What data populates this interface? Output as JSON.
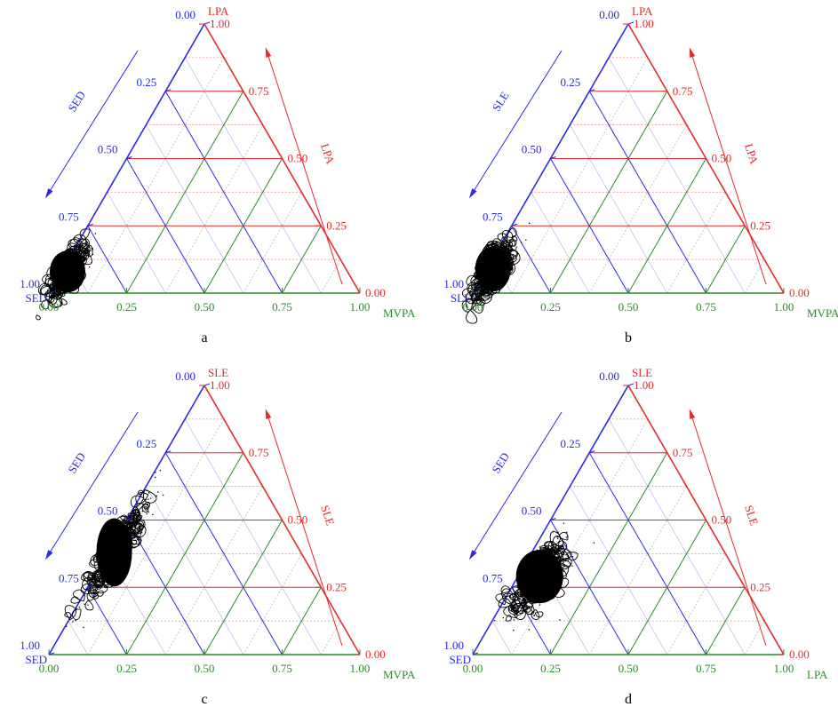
{
  "colors": {
    "left": "#2a2ae6",
    "right": "#e62a2a",
    "bottom": "#2a8a2a",
    "data": "#000000"
  },
  "chart_data": [
    {
      "type": "scatter",
      "caption": "a",
      "components": {
        "left": "SED",
        "right": "LPA",
        "bottom": "MVPA"
      },
      "ticks": [
        "0.00",
        "0.25",
        "0.50",
        "0.75",
        "1.00"
      ],
      "axis_range": [
        0,
        1
      ],
      "cluster": {
        "SED_range": [
          0.8,
          1.0
        ],
        "LPA_range": [
          0.0,
          0.2
        ],
        "MVPA_range": [
          0.0,
          0.05
        ],
        "center": {
          "SED": 0.9,
          "LPA": 0.08,
          "MVPA": 0.02
        }
      }
    },
    {
      "type": "scatter",
      "caption": "b",
      "components": {
        "left": "SLE",
        "right": "LPA",
        "bottom": "MVPA"
      },
      "ticks": [
        "0.00",
        "0.25",
        "0.50",
        "0.75",
        "1.00"
      ],
      "axis_range": [
        0,
        1
      ],
      "cluster": {
        "SLE_range": [
          0.78,
          1.0
        ],
        "LPA_range": [
          0.0,
          0.22
        ],
        "MVPA_range": [
          0.0,
          0.05
        ],
        "center": {
          "SLE": 0.89,
          "LPA": 0.09,
          "MVPA": 0.02
        }
      }
    },
    {
      "type": "scatter",
      "caption": "c",
      "components": {
        "left": "SED",
        "right": "SLE",
        "bottom": "MVPA"
      },
      "ticks": [
        "0.00",
        "0.25",
        "0.50",
        "0.75",
        "1.00"
      ],
      "axis_range": [
        0,
        1
      ],
      "cluster": {
        "SED_range": [
          0.42,
          0.78
        ],
        "SLE_range": [
          0.22,
          0.58
        ],
        "MVPA_range": [
          0.0,
          0.04
        ],
        "center": {
          "SED": 0.6,
          "SLE": 0.38,
          "MVPA": 0.02
        }
      }
    },
    {
      "type": "scatter",
      "caption": "d",
      "components": {
        "left": "SED",
        "right": "SLE",
        "bottom": "LPA"
      },
      "ticks": [
        "0.00",
        "0.25",
        "0.50",
        "0.75",
        "1.00"
      ],
      "axis_range": [
        0,
        1
      ],
      "cluster": {
        "SED_range": [
          0.48,
          0.8
        ],
        "SLE_range": [
          0.15,
          0.42
        ],
        "LPA_range": [
          0.02,
          0.12
        ],
        "center": {
          "SED": 0.64,
          "SLE": 0.29,
          "LPA": 0.07
        }
      }
    }
  ]
}
